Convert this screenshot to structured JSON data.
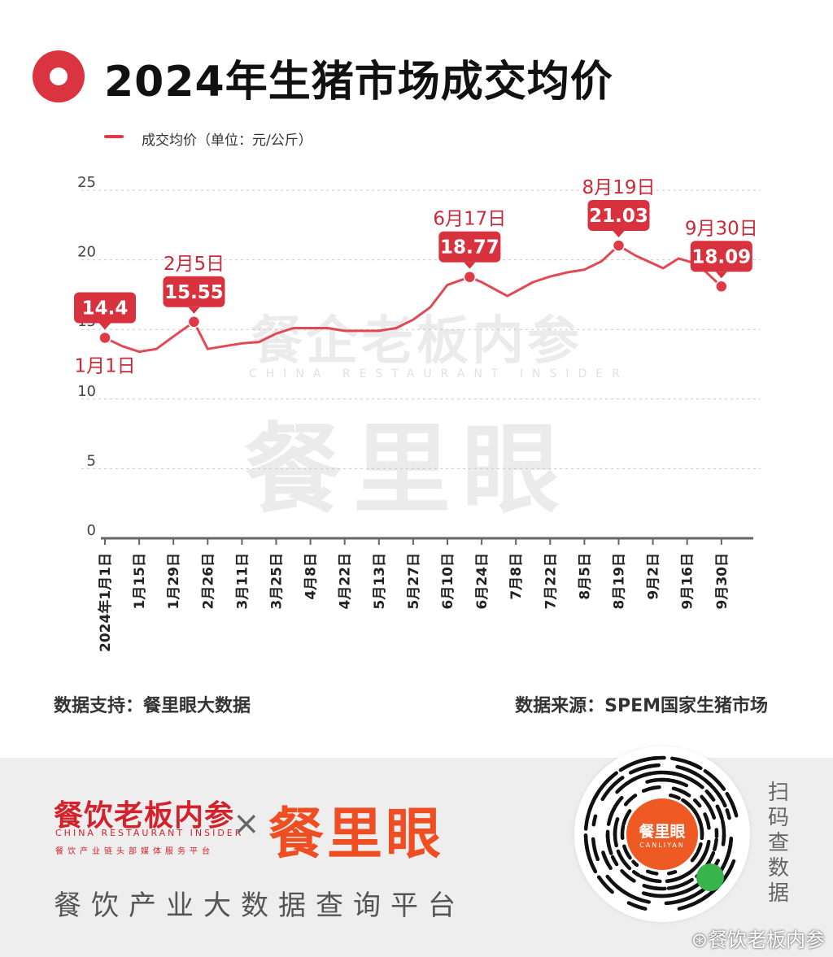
{
  "header": {
    "title": "2024年生猪市场成交均价"
  },
  "watermark": {
    "cn": "餐企老板内参",
    "en": "CHINA RESTAURANT INSIDER",
    "brand": "餐里眼"
  },
  "footer": {
    "left": "数据支持：餐里眼大数据",
    "right": "数据来源：SPEM国家生猪市场"
  },
  "bottom": {
    "brand_cn": "餐饮老板内参",
    "brand_en": "CHINA RESTAURANT INSIDER",
    "brand_tag": "餐饮产业链头部媒体服务平台",
    "cross": "×",
    "brand2": "餐里眼",
    "platform": "餐饮产业大数据查询平台",
    "qr_title": "餐里眼",
    "qr_sub": "CANLIYAN",
    "scan": "扫码查数据",
    "weibo": "⊛餐饮老板内参"
  },
  "colors": {
    "line": "#e04a55",
    "marker": "#e03a47",
    "callout": "#d8323f",
    "label": "#c92a3a"
  },
  "chart_data": {
    "type": "line",
    "title": "2024年生猪市场成交均价",
    "legend": "成交均价（单位：元/公斤）",
    "legend_position": "top-left",
    "ylim": [
      0,
      25
    ],
    "yticks": [
      0,
      5,
      10,
      15,
      20,
      25
    ],
    "grid": true,
    "x_ticks": [
      "2024年1月1日",
      "1月15日",
      "1月29日",
      "2月26日",
      "3月11日",
      "3月25日",
      "4月8日",
      "4月22日",
      "5月13日",
      "5月27日",
      "6月10日",
      "6月24日",
      "7月8日",
      "7月22日",
      "8月5日",
      "8月19日",
      "9月2日",
      "9月16日",
      "9月30日"
    ],
    "series": [
      {
        "name": "成交均价",
        "points": [
          {
            "x": 0,
            "y": 14.4
          },
          {
            "x": 0.5,
            "y": 13.8
          },
          {
            "x": 1,
            "y": 13.4
          },
          {
            "x": 1.5,
            "y": 13.6
          },
          {
            "x": 2,
            "y": 14.5
          },
          {
            "x": 2.6,
            "y": 15.55
          },
          {
            "x": 3,
            "y": 13.6
          },
          {
            "x": 3.5,
            "y": 13.8
          },
          {
            "x": 4,
            "y": 14.0
          },
          {
            "x": 4.5,
            "y": 14.1
          },
          {
            "x": 5,
            "y": 14.7
          },
          {
            "x": 5.5,
            "y": 15.1
          },
          {
            "x": 6,
            "y": 15.1
          },
          {
            "x": 6.5,
            "y": 15.1
          },
          {
            "x": 7,
            "y": 14.9
          },
          {
            "x": 7.5,
            "y": 14.9
          },
          {
            "x": 8,
            "y": 14.9
          },
          {
            "x": 8.5,
            "y": 15.1
          },
          {
            "x": 9,
            "y": 15.7
          },
          {
            "x": 9.5,
            "y": 16.6
          },
          {
            "x": 10,
            "y": 18.2
          },
          {
            "x": 10.65,
            "y": 18.77
          },
          {
            "x": 11,
            "y": 18.4
          },
          {
            "x": 11.75,
            "y": 17.4
          },
          {
            "x": 12.5,
            "y": 18.4
          },
          {
            "x": 13,
            "y": 18.8
          },
          {
            "x": 13.5,
            "y": 19.1
          },
          {
            "x": 14,
            "y": 19.3
          },
          {
            "x": 14.5,
            "y": 19.9
          },
          {
            "x": 15,
            "y": 21.03
          },
          {
            "x": 15.5,
            "y": 20.3
          },
          {
            "x": 16.3,
            "y": 19.4
          },
          {
            "x": 16.75,
            "y": 20.1
          },
          {
            "x": 17.3,
            "y": 19.7
          },
          {
            "x": 18,
            "y": 18.09
          }
        ]
      }
    ],
    "annotations": [
      {
        "x": 0,
        "y": 14.4,
        "value": "14.4",
        "date": "1月1日",
        "label_side": "below"
      },
      {
        "x": 2.6,
        "y": 15.55,
        "value": "15.55",
        "date": "2月5日",
        "label_side": "above"
      },
      {
        "x": 10.65,
        "y": 18.77,
        "value": "18.77",
        "date": "6月17日",
        "label_side": "above"
      },
      {
        "x": 15,
        "y": 21.03,
        "value": "21.03",
        "date": "8月19日",
        "label_side": "above"
      },
      {
        "x": 18,
        "y": 18.09,
        "value": "18.09",
        "date": "9月30日",
        "label_side": "above"
      }
    ]
  }
}
